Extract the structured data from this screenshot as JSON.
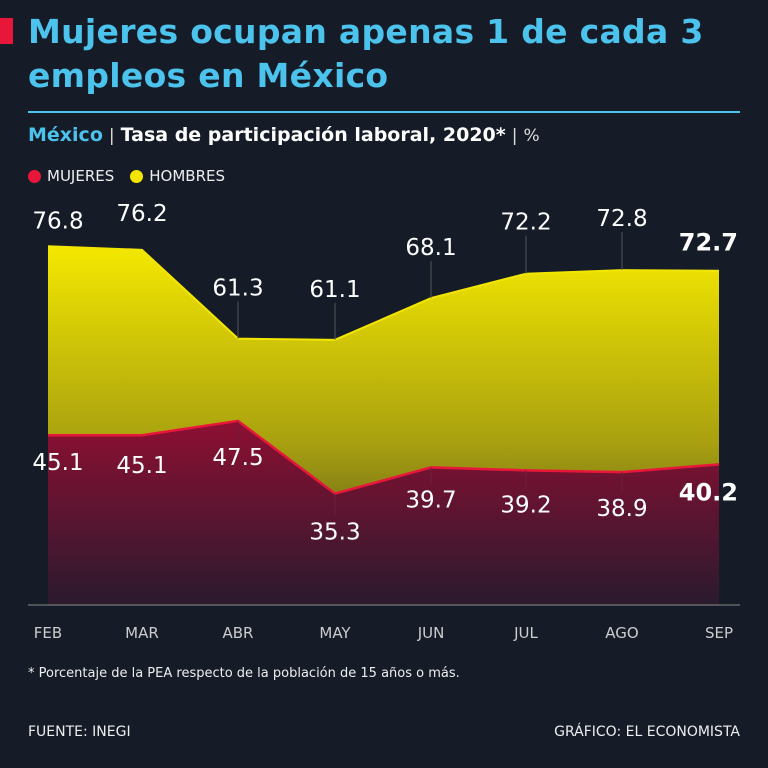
{
  "header": {
    "title": "Mujeres ocupan apenas 1 de cada 3 empleos en México",
    "subtitle_country": "México",
    "subtitle_metric": "Tasa de participación laboral, 2020*",
    "subtitle_unit": "%",
    "separator": "|"
  },
  "legend": [
    {
      "label": "MUJERES",
      "color": "#e8173a"
    },
    {
      "label": "HOMBRES",
      "color": "#f2e600"
    }
  ],
  "chart_data": {
    "type": "area",
    "title": "Tasa de participación laboral, 2020*",
    "ylabel": "%",
    "categories": [
      "FEB",
      "MAR",
      "ABR",
      "MAY",
      "JUN",
      "JUL",
      "AGO",
      "SEP"
    ],
    "series": [
      {
        "name": "HOMBRES",
        "color": "#f2e600",
        "values": [
          76.8,
          76.2,
          61.3,
          61.1,
          68.1,
          72.2,
          72.8,
          72.7
        ]
      },
      {
        "name": "MUJERES",
        "color": "#e8173a",
        "values": [
          45.1,
          45.1,
          47.5,
          35.3,
          39.7,
          39.2,
          38.9,
          40.2
        ]
      }
    ],
    "value_labels": {
      "HOMBRES": [
        "76.8",
        "76.2",
        "61.3",
        "61.1",
        "68.1",
        "72.2",
        "72.8",
        "72.7"
      ],
      "MUJERES": [
        "45.1",
        "45.1",
        "47.5",
        "35.3",
        "39.7",
        "39.2",
        "38.9",
        "40.2"
      ]
    },
    "ylim": [
      16.6,
      80
    ],
    "grid": false,
    "legend_position": "top-left"
  },
  "footer": {
    "note": "* Porcentaje de la PEA respecto de la población de 15 años o más.",
    "source": "FUENTE: INEGI",
    "credit": "GRÁFICO: EL ECONOMISTA"
  }
}
